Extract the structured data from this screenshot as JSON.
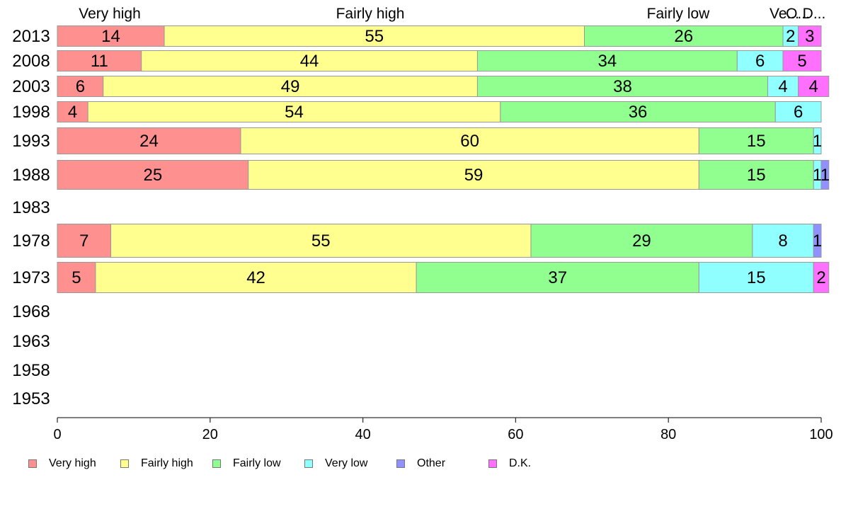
{
  "chart_data": {
    "type": "bar",
    "orientation": "horizontal",
    "stacked": true,
    "categories": [
      "2013",
      "2008",
      "2003",
      "1998",
      "1993",
      "1988",
      "1983",
      "1978",
      "1973",
      "1968",
      "1963",
      "1958",
      "1953"
    ],
    "series": [
      {
        "name": "Very high",
        "color": "#ff9090",
        "values": [
          14,
          11,
          6,
          4,
          24,
          25,
          null,
          7,
          5,
          null,
          null,
          null,
          null
        ]
      },
      {
        "name": "Fairly high",
        "color": "#ffff90",
        "values": [
          55,
          44,
          49,
          54,
          60,
          59,
          null,
          55,
          42,
          null,
          null,
          null,
          null
        ]
      },
      {
        "name": "Fairly low",
        "color": "#90ff90",
        "values": [
          26,
          34,
          38,
          36,
          15,
          15,
          null,
          29,
          37,
          null,
          null,
          null,
          null
        ]
      },
      {
        "name": "Very low",
        "color": "#90ffff",
        "values": [
          2,
          6,
          4,
          6,
          1,
          1,
          null,
          8,
          15,
          null,
          null,
          null,
          null
        ]
      },
      {
        "name": "Other",
        "color": "#9090ff",
        "values": [
          null,
          null,
          null,
          null,
          null,
          1,
          null,
          1,
          null,
          null,
          null,
          null,
          null
        ]
      },
      {
        "name": "D.K.",
        "color": "#ff70ff",
        "values": [
          3,
          5,
          4,
          null,
          null,
          null,
          null,
          null,
          2,
          null,
          null,
          null,
          null
        ]
      }
    ],
    "top_labels": [
      "Very high",
      "Fairly high",
      "Fairly low",
      "Ve...",
      "O...",
      "D..."
    ],
    "xlim": [
      0,
      100
    ],
    "xticks": [
      "0",
      "20",
      "40",
      "60",
      "80",
      "100"
    ],
    "grid": false,
    "legend_position": "bottom-left",
    "title": "",
    "xlabel": "",
    "ylabel": ""
  }
}
